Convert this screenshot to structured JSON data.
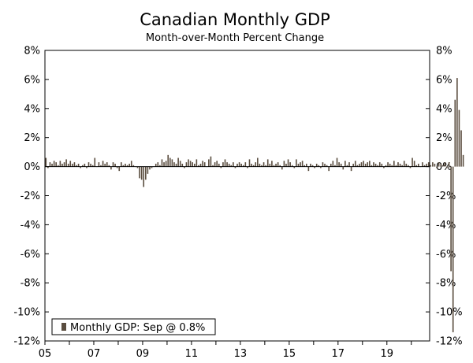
{
  "chart_data": {
    "type": "bar",
    "title": "Canadian Monthly GDP",
    "subtitle": "Month-over-Month Percent Change",
    "xlabel": "",
    "ylabel": "",
    "ylim": [
      -12,
      8
    ],
    "y_ticks": [
      -12,
      -10,
      -8,
      -6,
      -4,
      -2,
      0,
      2,
      4,
      6,
      8
    ],
    "y_tick_labels": [
      "-12%",
      "-10%",
      "-8%",
      "-6%",
      "-4%",
      "-2%",
      "0%",
      "2%",
      "4%",
      "6%",
      "8%"
    ],
    "x_range": [
      2005,
      2020.75
    ],
    "x_ticks": [
      2005,
      2007,
      2009,
      2011,
      2013,
      2015,
      2017,
      2019
    ],
    "x_tick_labels": [
      "05",
      "07",
      "09",
      "11",
      "13",
      "15",
      "17",
      "19"
    ],
    "grid": false,
    "legend_position": "bottom-left",
    "bar_color": "#5a4d3f",
    "start_month": "2005-01",
    "series": [
      {
        "name": "Monthly GDP: Sep @ 0.8%",
        "values": [
          0.6,
          -0.1,
          0.3,
          0.2,
          0.4,
          0.3,
          0.1,
          0.4,
          0.2,
          0.3,
          0.5,
          0.2,
          0.4,
          0.2,
          0.3,
          0.1,
          0.2,
          -0.1,
          0.1,
          0.2,
          -0.1,
          0.3,
          0.2,
          0.1,
          0.6,
          0.0,
          0.3,
          0.1,
          0.4,
          0.2,
          0.3,
          0.1,
          -0.2,
          0.3,
          0.2,
          -0.1,
          -0.3,
          0.3,
          0.1,
          0.2,
          0.1,
          0.2,
          0.4,
          0.1,
          0.0,
          -0.1,
          -0.8,
          -0.9,
          -1.4,
          -0.9,
          -0.5,
          -0.2,
          -0.1,
          0.0,
          0.2,
          0.3,
          0.1,
          0.5,
          0.3,
          0.4,
          0.8,
          0.6,
          0.5,
          0.3,
          0.2,
          0.6,
          0.4,
          0.2,
          -0.1,
          0.3,
          0.5,
          0.4,
          0.3,
          0.2,
          0.5,
          0.1,
          0.2,
          0.4,
          0.3,
          0.0,
          0.5,
          0.7,
          0.1,
          0.3,
          0.4,
          0.2,
          -0.1,
          0.3,
          0.5,
          0.3,
          0.2,
          0.1,
          0.3,
          -0.1,
          0.2,
          0.3,
          0.2,
          0.1,
          0.3,
          -0.1,
          0.5,
          0.2,
          0.1,
          0.3,
          0.6,
          0.2,
          0.1,
          0.3,
          0.1,
          0.5,
          0.2,
          0.4,
          0.1,
          0.2,
          0.3,
          0.1,
          -0.2,
          0.4,
          0.2,
          0.5,
          0.3,
          0.1,
          -0.1,
          0.5,
          0.2,
          0.3,
          0.4,
          0.1,
          0.2,
          -0.3,
          0.2,
          0.1,
          -0.1,
          0.2,
          0.1,
          -0.1,
          0.3,
          0.2,
          0.1,
          -0.3,
          0.2,
          0.4,
          0.1,
          0.6,
          0.3,
          0.2,
          -0.2,
          0.4,
          0.1,
          0.3,
          -0.3,
          0.2,
          0.4,
          0.1,
          0.2,
          0.3,
          0.4,
          0.2,
          0.3,
          0.4,
          0.1,
          0.3,
          0.2,
          0.1,
          0.3,
          0.2,
          -0.1,
          0.1,
          0.3,
          0.2,
          0.1,
          0.4,
          0.1,
          0.3,
          0.2,
          0.1,
          0.4,
          0.2,
          0.1,
          -0.1,
          0.6,
          0.4,
          0.1,
          0.2,
          0.0,
          0.3,
          0.1,
          0.2,
          0.3,
          0.1,
          0.3,
          0.2,
          -0.1,
          0.3,
          0.2,
          0.1,
          0.3,
          -0.1,
          0.3,
          -7.2,
          -11.4,
          4.6,
          6.1,
          3.9,
          2.5,
          0.8
        ]
      }
    ]
  }
}
